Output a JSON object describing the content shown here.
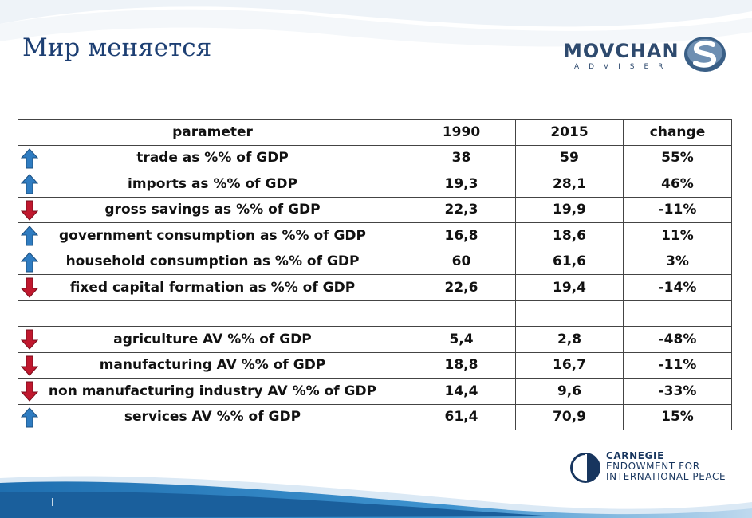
{
  "slide": {
    "title": "Мир меняется",
    "page_marker": "I"
  },
  "logos": {
    "movchan": {
      "word": "MOVCHAN",
      "subtitle": "ADVISER"
    },
    "carnegie": {
      "line1": "CARNEGIE",
      "line2": "ENDOWMENT FOR",
      "line3": "INTERNATIONAL PEACE"
    }
  },
  "colors": {
    "title": "#1d3f73",
    "arrow_up": "#2f7cc1",
    "arrow_down": "#c0182e",
    "swoosh": "#2a7fc0"
  },
  "table": {
    "headers": [
      "parameter",
      "1990",
      "2015",
      "change"
    ],
    "rows": [
      {
        "trend": "up-arrow-icon",
        "parameter": "trade as %% of GDP",
        "y1990": "38",
        "y2015": "59",
        "change": "55%"
      },
      {
        "trend": "up-arrow-icon",
        "parameter": "imports as %% of GDP",
        "y1990": "19,3",
        "y2015": "28,1",
        "change": "46%"
      },
      {
        "trend": "down-arrow-icon",
        "parameter": "gross savings as %% of GDP",
        "y1990": "22,3",
        "y2015": "19,9",
        "change": "-11%"
      },
      {
        "trend": "up-arrow-icon",
        "parameter": "government consumption as %% of GDP",
        "y1990": "16,8",
        "y2015": "18,6",
        "change": "11%"
      },
      {
        "trend": "up-arrow-icon",
        "parameter": "household consumption as %% of GDP",
        "y1990": "60",
        "y2015": "61,6",
        "change": "3%"
      },
      {
        "trend": "down-arrow-icon",
        "parameter": "fixed capital formation as %% of GDP",
        "y1990": "22,6",
        "y2015": "19,4",
        "change": "-14%"
      },
      {
        "trend": "",
        "parameter": "",
        "y1990": "",
        "y2015": "",
        "change": ""
      },
      {
        "trend": "down-arrow-icon",
        "parameter": "agriculture AV %% of GDP",
        "y1990": "5,4",
        "y2015": "2,8",
        "change": "-48%"
      },
      {
        "trend": "down-arrow-icon",
        "parameter": "manufacturing AV %% of GDP",
        "y1990": "18,8",
        "y2015": "16,7",
        "change": "-11%"
      },
      {
        "trend": "down-arrow-icon",
        "parameter": "non manufacturing industry AV %% of GDP",
        "y1990": "14,4",
        "y2015": "9,6",
        "change": "-33%"
      },
      {
        "trend": "up-arrow-icon",
        "parameter": "services AV %% of GDP",
        "y1990": "61,4",
        "y2015": "70,9",
        "change": "15%"
      }
    ]
  }
}
